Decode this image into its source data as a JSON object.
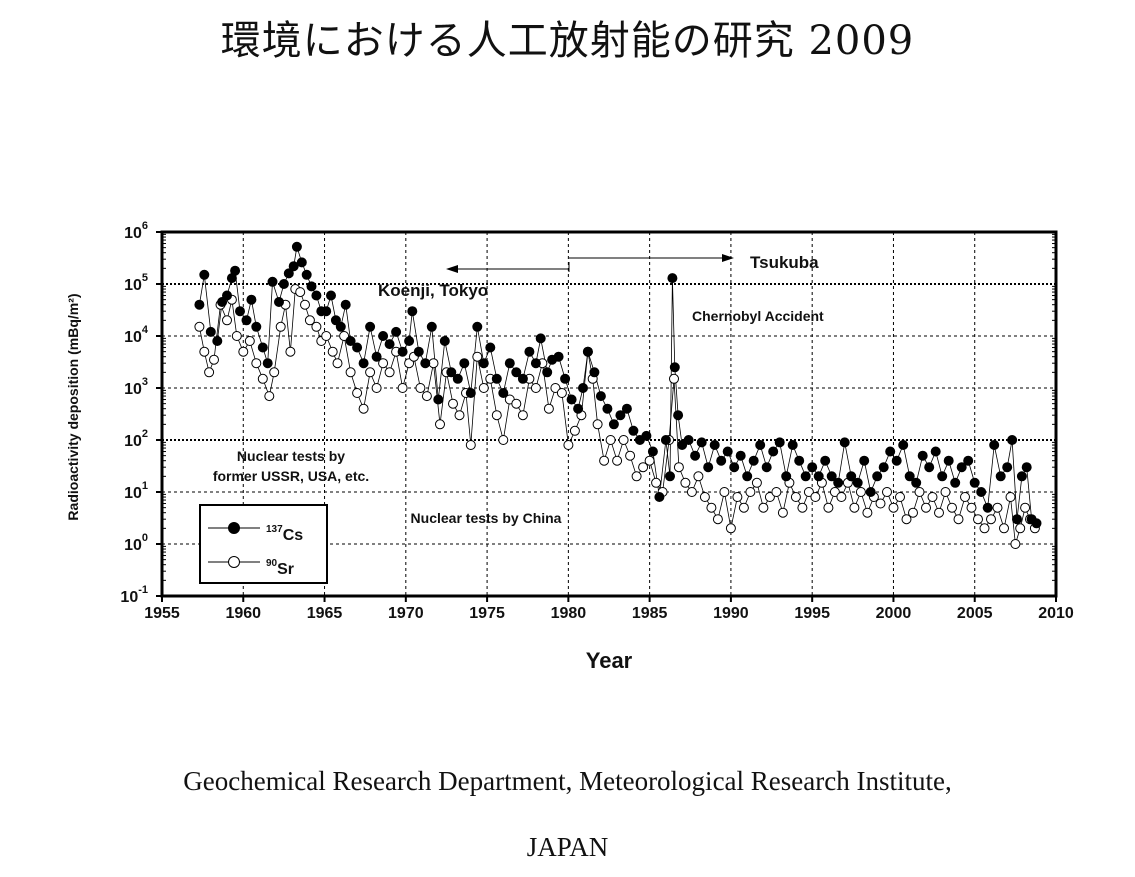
{
  "header": {
    "title": "環境における人工放射能の研究 2009"
  },
  "footer": {
    "line1": "Geochemical Research Department, Meteorological Research Institute,",
    "line2": "JAPAN"
  },
  "colors": {
    "cs": "#000000",
    "sr": "#ffffff",
    "grid": "#000000"
  },
  "chart_data": {
    "type": "scatter",
    "title": "",
    "xlabel": "Year",
    "ylabel": "Radioactivity deposition (mBq/m²)",
    "y_scale": "log",
    "xlim": [
      1955,
      2010
    ],
    "ylim_exponent": [
      -1,
      6
    ],
    "x_ticks": [
      "1955",
      "1960",
      "1965",
      "1970",
      "1975",
      "1980",
      "1985",
      "1990",
      "1995",
      "2000",
      "2005",
      "2010"
    ],
    "y_ticks": [
      {
        "base": "10",
        "exp": "6"
      },
      {
        "base": "10",
        "exp": "5"
      },
      {
        "base": "10",
        "exp": "4"
      },
      {
        "base": "10",
        "exp": "3"
      },
      {
        "base": "10",
        "exp": "2"
      },
      {
        "base": "10",
        "exp": "1"
      },
      {
        "base": "10",
        "exp": "0"
      },
      {
        "base": "10",
        "exp": "-1"
      }
    ],
    "annotations": {
      "tsukuba": "Tsukuba",
      "koenji": "Koenji, Tokyo",
      "chernobyl": "Chernobyl Accident",
      "tests_usa_1": "Nuclear tests by",
      "tests_usa_2": "former USSR, USA, etc.",
      "tests_china": "Nuclear tests by China",
      "site_change_year": 1980
    },
    "legend": {
      "position": "bottom-left",
      "cs_mass": "137",
      "cs_sym": "Cs",
      "sr_mass": "90",
      "sr_sym": "Sr"
    },
    "series": [
      {
        "name": "137Cs",
        "marker": "filled-circle",
        "points": [
          [
            1957.3,
            40000
          ],
          [
            1957.6,
            150000
          ],
          [
            1958.0,
            12000
          ],
          [
            1958.4,
            8000
          ],
          [
            1958.7,
            45000
          ],
          [
            1959.0,
            60000
          ],
          [
            1959.3,
            130000
          ],
          [
            1959.5,
            180000
          ],
          [
            1959.8,
            30000
          ],
          [
            1960.2,
            20000
          ],
          [
            1960.5,
            50000
          ],
          [
            1960.8,
            15000
          ],
          [
            1961.2,
            6000
          ],
          [
            1961.5,
            3000
          ],
          [
            1961.8,
            110000
          ],
          [
            1962.2,
            45000
          ],
          [
            1962.5,
            100000
          ],
          [
            1962.8,
            160000
          ],
          [
            1963.1,
            220000
          ],
          [
            1963.3,
            520000
          ],
          [
            1963.6,
            260000
          ],
          [
            1963.9,
            150000
          ],
          [
            1964.2,
            90000
          ],
          [
            1964.5,
            60000
          ],
          [
            1964.8,
            30000
          ],
          [
            1965.1,
            30000
          ],
          [
            1965.4,
            60000
          ],
          [
            1965.7,
            20000
          ],
          [
            1966.0,
            15000
          ],
          [
            1966.3,
            40000
          ],
          [
            1966.6,
            8000
          ],
          [
            1967.0,
            6000
          ],
          [
            1967.4,
            3000
          ],
          [
            1967.8,
            15000
          ],
          [
            1968.2,
            4000
          ],
          [
            1968.6,
            10000
          ],
          [
            1969.0,
            7000
          ],
          [
            1969.4,
            12000
          ],
          [
            1969.8,
            5000
          ],
          [
            1970.2,
            8000
          ],
          [
            1970.4,
            30000
          ],
          [
            1970.8,
            5000
          ],
          [
            1971.2,
            3000
          ],
          [
            1971.6,
            15000
          ],
          [
            1972.0,
            600
          ],
          [
            1972.4,
            8000
          ],
          [
            1972.8,
            2000
          ],
          [
            1973.2,
            1500
          ],
          [
            1973.6,
            3000
          ],
          [
            1974.0,
            800
          ],
          [
            1974.4,
            15000
          ],
          [
            1974.8,
            3000
          ],
          [
            1975.2,
            6000
          ],
          [
            1975.6,
            1500
          ],
          [
            1976.0,
            800
          ],
          [
            1976.4,
            3000
          ],
          [
            1976.8,
            2000
          ],
          [
            1977.2,
            1500
          ],
          [
            1977.6,
            5000
          ],
          [
            1978.0,
            3000
          ],
          [
            1978.3,
            9000
          ],
          [
            1978.7,
            2000
          ],
          [
            1979.0,
            3500
          ],
          [
            1979.4,
            4000
          ],
          [
            1979.8,
            1500
          ],
          [
            1980.2,
            600
          ],
          [
            1980.6,
            400
          ],
          [
            1980.9,
            1000
          ],
          [
            1981.2,
            5000
          ],
          [
            1981.6,
            2000
          ],
          [
            1982.0,
            700
          ],
          [
            1982.4,
            400
          ],
          [
            1982.8,
            200
          ],
          [
            1983.2,
            300
          ],
          [
            1983.6,
            400
          ],
          [
            1984.0,
            150
          ],
          [
            1984.4,
            100
          ],
          [
            1984.8,
            120
          ],
          [
            1985.2,
            60
          ],
          [
            1985.6,
            8
          ],
          [
            1986.0,
            100
          ],
          [
            1986.25,
            20
          ],
          [
            1986.4,
            130000
          ],
          [
            1986.55,
            2500
          ],
          [
            1986.75,
            300
          ],
          [
            1987.0,
            80
          ],
          [
            1987.4,
            100
          ],
          [
            1987.8,
            50
          ],
          [
            1988.2,
            90
          ],
          [
            1988.6,
            30
          ],
          [
            1989.0,
            80
          ],
          [
            1989.4,
            40
          ],
          [
            1989.8,
            60
          ],
          [
            1990.2,
            30
          ],
          [
            1990.6,
            50
          ],
          [
            1991.0,
            20
          ],
          [
            1991.4,
            40
          ],
          [
            1991.8,
            80
          ],
          [
            1992.2,
            30
          ],
          [
            1992.6,
            60
          ],
          [
            1993.0,
            90
          ],
          [
            1993.4,
            20
          ],
          [
            1993.8,
            80
          ],
          [
            1994.2,
            40
          ],
          [
            1994.6,
            20
          ],
          [
            1995.0,
            30
          ],
          [
            1995.4,
            20
          ],
          [
            1995.8,
            40
          ],
          [
            1996.2,
            20
          ],
          [
            1996.6,
            15
          ],
          [
            1997.0,
            90
          ],
          [
            1997.4,
            20
          ],
          [
            1997.8,
            15
          ],
          [
            1998.2,
            40
          ],
          [
            1998.6,
            10
          ],
          [
            1999.0,
            20
          ],
          [
            1999.4,
            30
          ],
          [
            1999.8,
            60
          ],
          [
            2000.2,
            40
          ],
          [
            2000.6,
            80
          ],
          [
            2001.0,
            20
          ],
          [
            2001.4,
            15
          ],
          [
            2001.8,
            50
          ],
          [
            2002.2,
            30
          ],
          [
            2002.6,
            60
          ],
          [
            2003.0,
            20
          ],
          [
            2003.4,
            40
          ],
          [
            2003.8,
            15
          ],
          [
            2004.2,
            30
          ],
          [
            2004.6,
            40
          ],
          [
            2005.0,
            15
          ],
          [
            2005.4,
            10
          ],
          [
            2005.8,
            5
          ],
          [
            2006.2,
            80
          ],
          [
            2006.6,
            20
          ],
          [
            2007.0,
            30
          ],
          [
            2007.3,
            100
          ],
          [
            2007.6,
            3
          ],
          [
            2007.9,
            20
          ],
          [
            2008.2,
            30
          ],
          [
            2008.5,
            3
          ],
          [
            2008.8,
            2.5
          ]
        ]
      },
      {
        "name": "90Sr",
        "marker": "open-circle",
        "points": [
          [
            1957.3,
            15000
          ],
          [
            1957.6,
            5000
          ],
          [
            1957.9,
            2000
          ],
          [
            1958.2,
            3500
          ],
          [
            1958.6,
            40000
          ],
          [
            1959.0,
            20000
          ],
          [
            1959.3,
            50000
          ],
          [
            1959.6,
            10000
          ],
          [
            1960.0,
            5000
          ],
          [
            1960.4,
            8000
          ],
          [
            1960.8,
            3000
          ],
          [
            1961.2,
            1500
          ],
          [
            1961.6,
            700
          ],
          [
            1961.9,
            2000
          ],
          [
            1962.3,
            15000
          ],
          [
            1962.6,
            40000
          ],
          [
            1962.9,
            5000
          ],
          [
            1963.2,
            80000
          ],
          [
            1963.5,
            70000
          ],
          [
            1963.8,
            40000
          ],
          [
            1964.1,
            20000
          ],
          [
            1964.5,
            15000
          ],
          [
            1964.8,
            8000
          ],
          [
            1965.1,
            10000
          ],
          [
            1965.5,
            5000
          ],
          [
            1965.8,
            3000
          ],
          [
            1966.2,
            10000
          ],
          [
            1966.6,
            2000
          ],
          [
            1967.0,
            800
          ],
          [
            1967.4,
            400
          ],
          [
            1967.8,
            2000
          ],
          [
            1968.2,
            1000
          ],
          [
            1968.6,
            3000
          ],
          [
            1969.0,
            2000
          ],
          [
            1969.4,
            5000
          ],
          [
            1969.8,
            1000
          ],
          [
            1970.2,
            3000
          ],
          [
            1970.5,
            4000
          ],
          [
            1970.9,
            1000
          ],
          [
            1971.3,
            700
          ],
          [
            1971.7,
            3000
          ],
          [
            1972.1,
            200
          ],
          [
            1972.5,
            2000
          ],
          [
            1972.9,
            500
          ],
          [
            1973.3,
            300
          ],
          [
            1973.7,
            800
          ],
          [
            1974.0,
            80
          ],
          [
            1974.4,
            4000
          ],
          [
            1974.8,
            1000
          ],
          [
            1975.2,
            1500
          ],
          [
            1975.6,
            300
          ],
          [
            1976.0,
            100
          ],
          [
            1976.4,
            600
          ],
          [
            1976.8,
            500
          ],
          [
            1977.2,
            300
          ],
          [
            1977.6,
            1500
          ],
          [
            1978.0,
            1000
          ],
          [
            1978.4,
            3000
          ],
          [
            1978.8,
            400
          ],
          [
            1979.2,
            1000
          ],
          [
            1979.6,
            800
          ],
          [
            1980.0,
            80
          ],
          [
            1980.4,
            150
          ],
          [
            1980.8,
            300
          ],
          [
            1981.2,
            5000
          ],
          [
            1981.5,
            1500
          ],
          [
            1981.8,
            200
          ],
          [
            1982.2,
            40
          ],
          [
            1982.6,
            100
          ],
          [
            1983.0,
            40
          ],
          [
            1983.4,
            100
          ],
          [
            1983.8,
            50
          ],
          [
            1984.2,
            20
          ],
          [
            1984.6,
            30
          ],
          [
            1985.0,
            40
          ],
          [
            1985.4,
            15
          ],
          [
            1985.8,
            10
          ],
          [
            1986.2,
            100
          ],
          [
            1986.5,
            1500
          ],
          [
            1986.8,
            30
          ],
          [
            1987.2,
            15
          ],
          [
            1987.6,
            10
          ],
          [
            1988.0,
            20
          ],
          [
            1988.4,
            8
          ],
          [
            1988.8,
            5
          ],
          [
            1989.2,
            3
          ],
          [
            1989.6,
            10
          ],
          [
            1990.0,
            2
          ],
          [
            1990.4,
            8
          ],
          [
            1990.8,
            5
          ],
          [
            1991.2,
            10
          ],
          [
            1991.6,
            15
          ],
          [
            1992.0,
            5
          ],
          [
            1992.4,
            8
          ],
          [
            1992.8,
            10
          ],
          [
            1993.2,
            4
          ],
          [
            1993.6,
            15
          ],
          [
            1994.0,
            8
          ],
          [
            1994.4,
            5
          ],
          [
            1994.8,
            10
          ],
          [
            1995.2,
            8
          ],
          [
            1995.6,
            15
          ],
          [
            1996.0,
            5
          ],
          [
            1996.4,
            10
          ],
          [
            1996.8,
            8
          ],
          [
            1997.2,
            15
          ],
          [
            1997.6,
            5
          ],
          [
            1998.0,
            10
          ],
          [
            1998.4,
            4
          ],
          [
            1998.8,
            8
          ],
          [
            1999.2,
            6
          ],
          [
            1999.6,
            10
          ],
          [
            2000.0,
            5
          ],
          [
            2000.4,
            8
          ],
          [
            2000.8,
            3
          ],
          [
            2001.2,
            4
          ],
          [
            2001.6,
            10
          ],
          [
            2002.0,
            5
          ],
          [
            2002.4,
            8
          ],
          [
            2002.8,
            4
          ],
          [
            2003.2,
            10
          ],
          [
            2003.6,
            5
          ],
          [
            2004.0,
            3
          ],
          [
            2004.4,
            8
          ],
          [
            2004.8,
            5
          ],
          [
            2005.2,
            3
          ],
          [
            2005.6,
            2
          ],
          [
            2006.0,
            3
          ],
          [
            2006.4,
            5
          ],
          [
            2006.8,
            2
          ],
          [
            2007.2,
            8
          ],
          [
            2007.5,
            1
          ],
          [
            2007.8,
            2
          ],
          [
            2008.1,
            5
          ],
          [
            2008.4,
            3
          ],
          [
            2008.7,
            2
          ]
        ]
      }
    ]
  }
}
